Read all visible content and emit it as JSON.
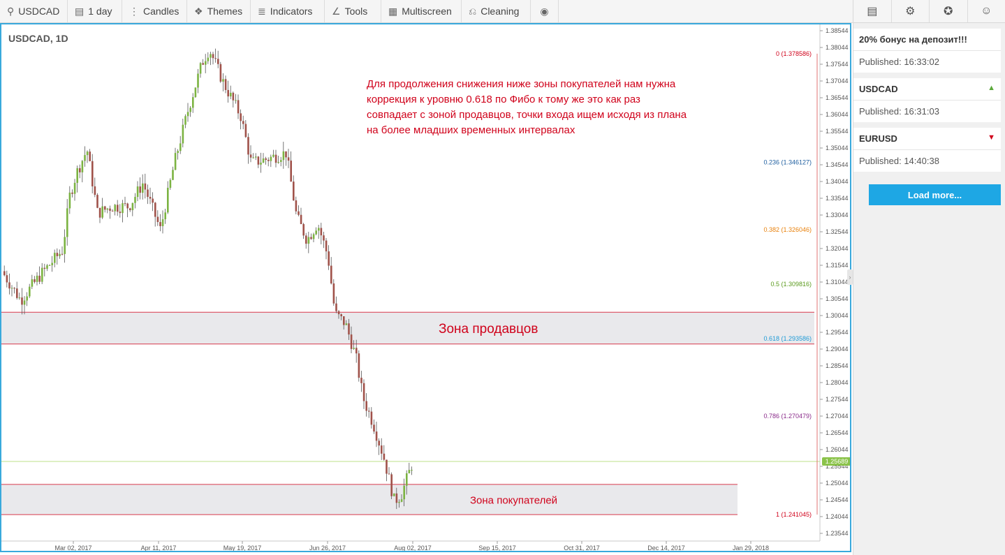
{
  "toolbar": {
    "symbol": "USDCAD",
    "timeframe": "1 day",
    "candles": "Candles",
    "themes": "Themes",
    "indicators": "Indicators",
    "tools": "Tools",
    "multiscreen": "Multiscreen",
    "cleaning": "Cleaning"
  },
  "chart": {
    "symbol_label": "USDCAD, 1D",
    "note": [
      "Для продолжения снижения ниже зоны покупателей нам нужна",
      "коррекция к уровню 0.618 по Фибо к тому же это как раз",
      "совпадает с зоной продавцов, точки входа ищем исходя из плана",
      "на более младших временных интервалах"
    ],
    "zone_sellers": "Зона продавцов",
    "zone_buyers": "Зона покупателей",
    "current_price": "1.25689",
    "y_ticks": [
      "1.38544",
      "1.38044",
      "1.37544",
      "1.37044",
      "1.36544",
      "1.36044",
      "1.35544",
      "1.35044",
      "1.34544",
      "1.34044",
      "1.33544",
      "1.33044",
      "1.32544",
      "1.32044",
      "1.31544",
      "1.31044",
      "1.30544",
      "1.30044",
      "1.29544",
      "1.29044",
      "1.28544",
      "1.28044",
      "1.27544",
      "1.27044",
      "1.26544",
      "1.26044",
      "1.25544",
      "1.25044",
      "1.24544",
      "1.24044",
      "1.23544"
    ],
    "x_ticks": [
      "Mar 02, 2017",
      "Apr 11, 2017",
      "May 19, 2017",
      "Jun 26, 2017",
      "Aug 02, 2017",
      "Sep 15, 2017",
      "Oct 31, 2017",
      "Dec 14, 2017",
      "Jan 29, 2018"
    ],
    "fib": [
      {
        "label": "0 (1.378586)",
        "color": "#d0021b"
      },
      {
        "label": "0.236 (1.346127)",
        "color": "#1f5fa0"
      },
      {
        "label": "0.382 (1.326046)",
        "color": "#e8810c"
      },
      {
        "label": "0.5 (1.309816)",
        "color": "#5a9a1c"
      },
      {
        "label": "0.618 (1.293586)",
        "color": "#1e9ad6"
      },
      {
        "label": "0.786 (1.270479)",
        "color": "#8a2a8a"
      },
      {
        "label": "1 (1.241045)",
        "color": "#d0021b"
      }
    ],
    "colors": {
      "up": "#7cb342",
      "down": "#a0524a",
      "accent": "#39a9dc",
      "zone_line": "#d8394c"
    }
  },
  "sidebar": {
    "cards": [
      {
        "title": "20% бонус на депозит!!!",
        "published": "Published: 16:33:02",
        "arrow": ""
      },
      {
        "title": "USDCAD",
        "published": "Published: 16:31:03",
        "arrow": "up"
      },
      {
        "title": "EURUSD",
        "published": "Published: 14:40:38",
        "arrow": "down"
      }
    ],
    "load_more": "Load more..."
  }
}
